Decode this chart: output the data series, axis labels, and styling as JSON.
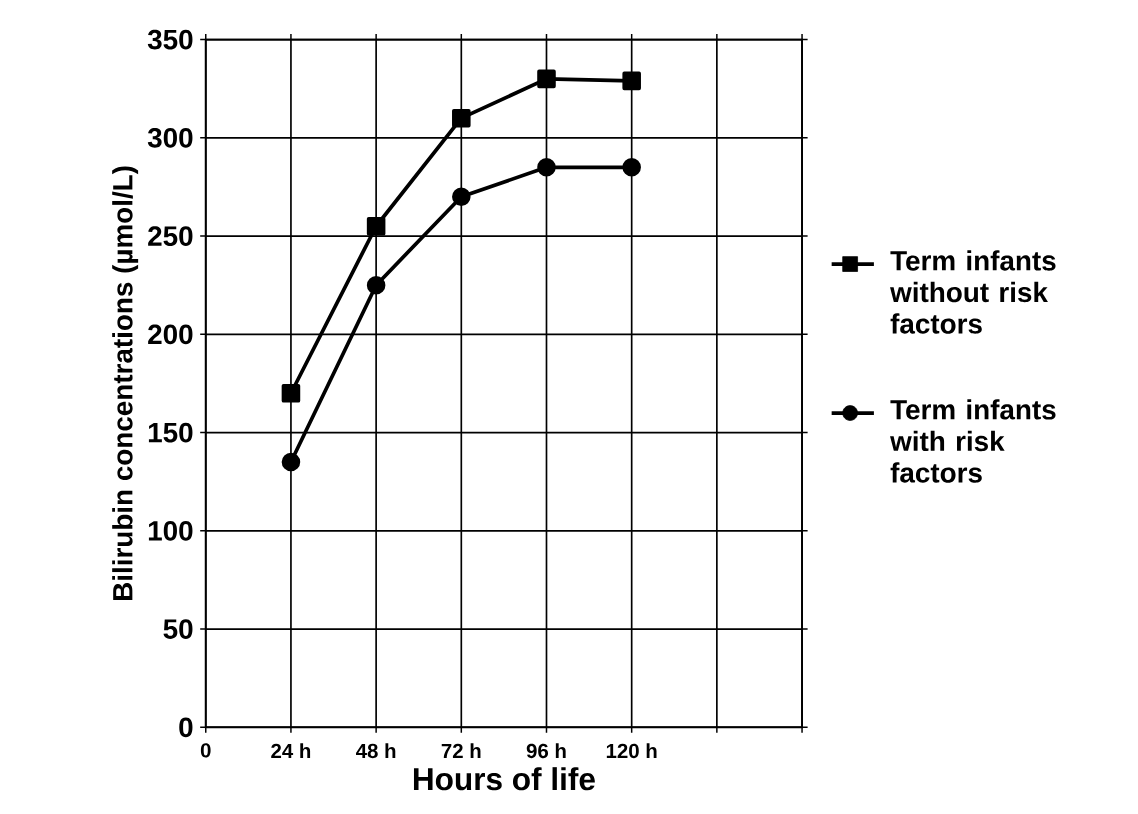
{
  "chart_data": {
    "type": "line",
    "xlabel": "Hours of life",
    "ylabel": "Bilirubin concentrations (µmol/L)",
    "x": [
      24,
      48,
      72,
      96,
      120
    ],
    "series": [
      {
        "name": "Term infants without risk factors",
        "color": "#000000",
        "marker": "square",
        "values": [
          170,
          255,
          310,
          330,
          329
        ]
      },
      {
        "name": "Term infants with risk factors",
        "color": "#000000",
        "marker": "circle",
        "values": [
          135,
          225,
          270,
          285,
          285
        ]
      }
    ],
    "xlim": [
      0,
      168
    ],
    "xticks": [
      0,
      {
        "value": 24,
        "label": "24 h"
      },
      {
        "value": 48,
        "label": "48 h"
      },
      {
        "value": 72,
        "label": "72 h"
      },
      {
        "value": 96,
        "label": "96 h"
      },
      {
        "value": 120,
        "label": "120 h"
      },
      {
        "value": 144,
        "label": null
      },
      {
        "value": 168,
        "label": null
      }
    ],
    "ylim": [
      0,
      350
    ],
    "yticks": [
      0,
      50,
      100,
      150,
      200,
      250,
      300,
      350
    ],
    "grid": true,
    "legend": "right",
    "line_style": "solid"
  }
}
